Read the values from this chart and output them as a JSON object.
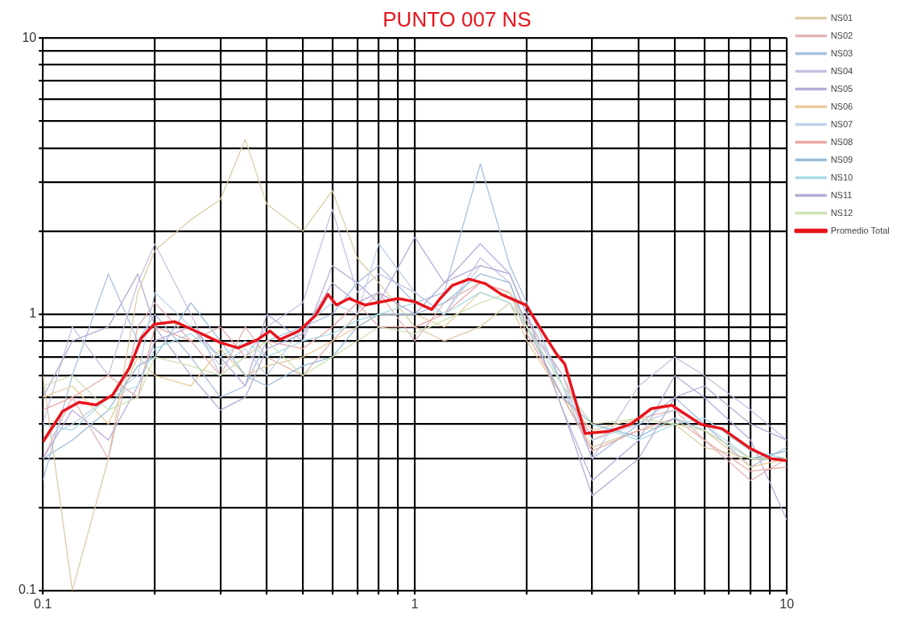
{
  "chart_data": {
    "type": "line",
    "title": "PUNTO 007 NS",
    "log": "xy",
    "grid": true,
    "legend": "top right",
    "marker": "none",
    "line_style": "solid",
    "xlim": [
      0.1,
      10
    ],
    "ylim": [
      0.1,
      10
    ],
    "xticks": [
      0.1,
      {
        "value": 0.2,
        "label": null
      },
      {
        "value": 0.3,
        "label": null
      },
      {
        "value": 0.4,
        "label": null
      },
      {
        "value": 0.5,
        "label": null
      },
      {
        "value": 0.6,
        "label": null
      },
      {
        "value": 0.7,
        "label": null
      },
      {
        "value": 0.8,
        "label": null
      },
      {
        "value": 0.9,
        "label": null
      },
      1,
      {
        "value": 2,
        "label": null
      },
      {
        "value": 3,
        "label": null
      },
      {
        "value": 4,
        "label": null
      },
      {
        "value": 5,
        "label": null
      },
      {
        "value": 6,
        "label": null
      },
      {
        "value": 7,
        "label": null
      },
      {
        "value": 8,
        "label": null
      },
      {
        "value": 9,
        "label": null
      },
      10
    ],
    "yticks": [
      0.1,
      {
        "value": 0.2,
        "label": null
      },
      {
        "value": 0.3,
        "label": null
      },
      {
        "value": 0.4,
        "label": null
      },
      {
        "value": 0.5,
        "label": null
      },
      {
        "value": 0.6,
        "label": null
      },
      {
        "value": 0.7,
        "label": null
      },
      {
        "value": 0.8,
        "label": null
      },
      {
        "value": 0.9,
        "label": null
      },
      1,
      {
        "value": 2,
        "label": null
      },
      {
        "value": 3,
        "label": null
      },
      {
        "value": 4,
        "label": null
      },
      {
        "value": 5,
        "label": null
      },
      {
        "value": 6,
        "label": null
      },
      {
        "value": 7,
        "label": null
      },
      {
        "value": 8,
        "label": null
      },
      {
        "value": 9,
        "label": null
      },
      10
    ],
    "x": [
      0.1,
      0.12,
      0.15,
      0.18,
      0.2,
      0.25,
      0.3,
      0.35,
      0.4,
      0.5,
      0.6,
      0.7,
      0.8,
      1,
      1.2,
      1.5,
      1.8,
      2,
      2.5,
      3,
      4,
      5,
      6,
      8,
      10
    ],
    "series": [
      {
        "name": "NS01",
        "color": "#dccca6",
        "values": [
          0.6,
          0.1,
          0.3,
          1.2,
          1.7,
          2.2,
          2.6,
          4.3,
          2.5,
          2.0,
          2.8,
          1.6,
          1.3,
          0.9,
          0.8,
          0.9,
          1.1,
          0.9,
          0.5,
          0.33,
          0.38,
          0.4,
          0.33,
          0.3,
          0.32
        ]
      },
      {
        "name": "NS02",
        "color": "#e2b4b4",
        "values": [
          0.3,
          0.5,
          0.3,
          0.9,
          1.1,
          0.8,
          0.6,
          0.9,
          0.7,
          0.6,
          0.8,
          1.0,
          1.2,
          0.8,
          1.1,
          1.3,
          1.2,
          0.95,
          0.6,
          0.35,
          0.42,
          0.45,
          0.35,
          0.25,
          0.3
        ]
      },
      {
        "name": "NS03",
        "color": "#a8c0e0",
        "values": [
          0.25,
          0.6,
          1.4,
          0.8,
          1.0,
          0.7,
          0.5,
          0.55,
          0.8,
          0.9,
          1.0,
          1.3,
          1.5,
          1.1,
          1.2,
          3.5,
          1.5,
          1.1,
          0.55,
          0.3,
          0.4,
          0.5,
          0.4,
          0.28,
          0.33
        ]
      },
      {
        "name": "NS04",
        "color": "#c8c0e2",
        "values": [
          0.4,
          0.9,
          0.6,
          1.3,
          1.8,
          1.0,
          0.6,
          0.7,
          0.9,
          1.1,
          2.4,
          1.2,
          1.4,
          1.2,
          1.0,
          1.6,
          1.3,
          0.9,
          0.6,
          0.3,
          0.55,
          0.7,
          0.6,
          0.45,
          0.35
        ]
      },
      {
        "name": "NS05",
        "color": "#b8acd8",
        "values": [
          0.3,
          0.45,
          0.35,
          0.55,
          0.8,
          0.9,
          0.7,
          0.55,
          1.0,
          0.8,
          1.5,
          1.3,
          1.1,
          1.9,
          1.3,
          1.8,
          1.4,
          1.0,
          0.45,
          0.25,
          0.35,
          0.6,
          0.5,
          0.35,
          0.18
        ]
      },
      {
        "name": "NS06",
        "color": "#e8cc9c",
        "values": [
          0.5,
          0.55,
          0.4,
          0.7,
          0.6,
          0.55,
          0.75,
          0.6,
          0.65,
          0.7,
          0.8,
          0.9,
          1.0,
          1.0,
          0.9,
          1.2,
          1.1,
          0.8,
          0.5,
          0.38,
          0.42,
          0.4,
          0.38,
          0.28,
          0.3
        ]
      },
      {
        "name": "NS07",
        "color": "#c0d2ea",
        "values": [
          0.35,
          0.4,
          0.5,
          0.6,
          1.2,
          0.9,
          0.65,
          0.75,
          0.6,
          0.9,
          1.1,
          1.0,
          1.8,
          1.2,
          1.0,
          1.5,
          1.4,
          1.0,
          0.55,
          0.35,
          0.4,
          0.45,
          0.4,
          0.3,
          0.3
        ]
      },
      {
        "name": "NS08",
        "color": "#e8a8a8",
        "values": [
          0.45,
          0.5,
          0.6,
          0.5,
          0.9,
          0.8,
          0.9,
          0.7,
          0.8,
          0.75,
          0.9,
          1.1,
          0.9,
          0.9,
          1.0,
          1.3,
          1.2,
          0.85,
          0.5,
          0.32,
          0.38,
          0.42,
          0.35,
          0.27,
          0.28
        ]
      },
      {
        "name": "NS09",
        "color": "#98bcd8",
        "values": [
          0.3,
          0.35,
          0.45,
          0.65,
          0.7,
          1.1,
          0.8,
          0.6,
          0.55,
          0.65,
          0.7,
          0.9,
          1.0,
          1.0,
          1.1,
          1.4,
          1.3,
          0.9,
          0.5,
          0.4,
          0.36,
          0.42,
          0.38,
          0.3,
          0.32
        ]
      },
      {
        "name": "NS10",
        "color": "#a8dce4",
        "values": [
          0.4,
          0.38,
          0.5,
          0.55,
          0.75,
          0.85,
          0.7,
          0.8,
          0.7,
          0.8,
          0.85,
          0.95,
          1.0,
          1.1,
          1.0,
          1.2,
          1.1,
          0.9,
          0.55,
          0.4,
          0.35,
          0.4,
          0.42,
          0.32,
          0.3
        ]
      },
      {
        "name": "NS11",
        "color": "#b4acd2",
        "values": [
          0.5,
          0.8,
          0.9,
          1.4,
          0.9,
          0.6,
          0.45,
          0.5,
          0.75,
          0.85,
          1.3,
          1.1,
          1.2,
          1.0,
          1.3,
          1.5,
          1.4,
          1.0,
          0.45,
          0.22,
          0.3,
          0.5,
          0.55,
          0.4,
          0.35
        ]
      },
      {
        "name": "NS12",
        "color": "#cce2b4",
        "values": [
          0.55,
          0.6,
          0.45,
          0.5,
          0.7,
          0.65,
          0.6,
          0.7,
          0.8,
          0.6,
          0.7,
          0.8,
          0.9,
          0.85,
          0.95,
          1.1,
          1.2,
          0.9,
          0.55,
          0.4,
          0.42,
          0.4,
          0.38,
          0.3,
          0.3
        ]
      },
      {
        "name": "Promedio Total",
        "color": "#e8141c",
        "x": [
          0.1,
          0.113,
          0.125,
          0.139,
          0.154,
          0.171,
          0.184,
          0.199,
          0.226,
          0.257,
          0.3,
          0.335,
          0.378,
          0.408,
          0.434,
          0.488,
          0.541,
          0.584,
          0.616,
          0.665,
          0.736,
          0.815,
          0.902,
          1.0,
          1.11,
          1.17,
          1.26,
          1.4,
          1.55,
          1.71,
          1.99,
          2.22,
          2.4,
          2.53,
          2.87,
          3.34,
          3.81,
          4.32,
          4.91,
          5.87,
          6.71,
          8.0,
          9.1,
          10
        ],
        "values": [
          0.345,
          0.445,
          0.48,
          0.47,
          0.51,
          0.64,
          0.82,
          0.92,
          0.94,
          0.87,
          0.79,
          0.755,
          0.81,
          0.87,
          0.81,
          0.87,
          0.99,
          1.18,
          1.08,
          1.14,
          1.08,
          1.11,
          1.14,
          1.11,
          1.04,
          1.14,
          1.27,
          1.34,
          1.29,
          1.18,
          1.08,
          0.85,
          0.72,
          0.66,
          0.37,
          0.377,
          0.4,
          0.455,
          0.468,
          0.4,
          0.385,
          0.326,
          0.3,
          0.295
        ]
      }
    ]
  }
}
